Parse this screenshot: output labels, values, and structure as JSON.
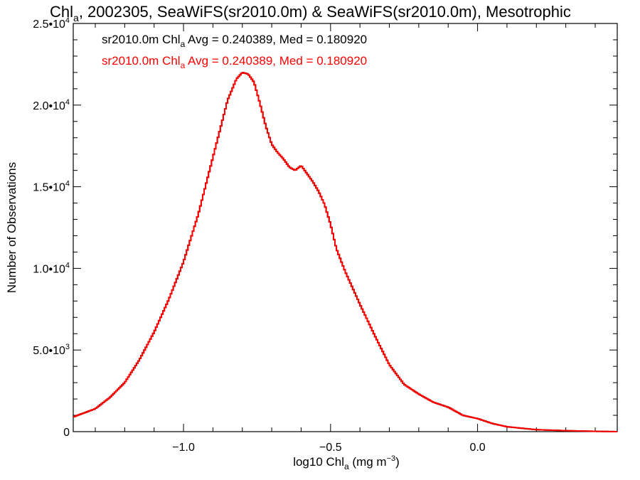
{
  "chart_data": {
    "type": "line",
    "title": {
      "prefix": "Chl",
      "subscript": "a",
      "rest": ", 2002305, SeaWiFS(sr2010.0m) & SeaWiFS(sr2010.0m), Mesotrophic"
    },
    "xlabel": {
      "prefix": "log10 Chl",
      "subscript": "a",
      "middle": " (mg m",
      "superscript": "−3",
      "suffix": ")"
    },
    "ylabel": "Number of Observations",
    "xlim": [
      -1.375,
      0.475
    ],
    "ylim": [
      0,
      25000
    ],
    "x_ticks": [
      {
        "value": -1.0,
        "label": "−1.0"
      },
      {
        "value": -0.5,
        "label": "−0.5"
      },
      {
        "value": 0.0,
        "label": "0.0"
      }
    ],
    "y_ticks": [
      {
        "value": 0,
        "label": "0",
        "exp": ""
      },
      {
        "value": 5000,
        "label": "5.0•10",
        "exp": "3"
      },
      {
        "value": 10000,
        "label": "1.0•10",
        "exp": "4"
      },
      {
        "value": 15000,
        "label": "1.5•10",
        "exp": "4"
      },
      {
        "value": 20000,
        "label": "2.0•10",
        "exp": "4"
      },
      {
        "value": 25000,
        "label": "2.5•10",
        "exp": "4"
      }
    ],
    "series": [
      {
        "name": "sr2010.0m Chl_a",
        "color": "#000000",
        "legend": {
          "prefix": "sr2010.0m Chl",
          "subscript": "a",
          "rest": " Avg = 0.240389, Med = 0.180920"
        },
        "x": [
          -1.375,
          -1.3,
          -1.25,
          -1.2,
          -1.15,
          -1.1,
          -1.05,
          -1.0,
          -0.95,
          -0.9,
          -0.85,
          -0.82,
          -0.8,
          -0.78,
          -0.76,
          -0.74,
          -0.72,
          -0.7,
          -0.68,
          -0.66,
          -0.64,
          -0.62,
          -0.6,
          -0.58,
          -0.56,
          -0.54,
          -0.52,
          -0.5,
          -0.48,
          -0.45,
          -0.4,
          -0.35,
          -0.3,
          -0.25,
          -0.2,
          -0.15,
          -0.1,
          -0.05,
          0.0,
          0.05,
          0.1,
          0.2,
          0.3,
          0.4,
          0.475
        ],
        "y": [
          900,
          1400,
          2100,
          3000,
          4400,
          6100,
          8100,
          10400,
          13300,
          16800,
          20300,
          21600,
          22000,
          21900,
          21400,
          20100,
          18700,
          17600,
          17100,
          16700,
          16200,
          16000,
          16300,
          15800,
          15300,
          14700,
          13900,
          12700,
          11200,
          9800,
          7800,
          5900,
          4100,
          2900,
          2300,
          1800,
          1500,
          1000,
          800,
          500,
          300,
          120,
          60,
          20,
          0
        ]
      },
      {
        "name": "sr2010.0m Chl_a",
        "color": "#ff0000",
        "legend": {
          "prefix": "sr2010.0m Chl",
          "subscript": "a",
          "rest": " Avg = 0.240389, Med = 0.180920"
        },
        "x": [
          -1.375,
          -1.3,
          -1.25,
          -1.2,
          -1.15,
          -1.1,
          -1.05,
          -1.0,
          -0.95,
          -0.9,
          -0.85,
          -0.82,
          -0.8,
          -0.78,
          -0.76,
          -0.74,
          -0.72,
          -0.7,
          -0.68,
          -0.66,
          -0.64,
          -0.62,
          -0.6,
          -0.58,
          -0.56,
          -0.54,
          -0.52,
          -0.5,
          -0.48,
          -0.45,
          -0.4,
          -0.35,
          -0.3,
          -0.25,
          -0.2,
          -0.15,
          -0.1,
          -0.05,
          0.0,
          0.05,
          0.1,
          0.2,
          0.3,
          0.4,
          0.475
        ],
        "y": [
          900,
          1400,
          2100,
          3000,
          4400,
          6100,
          8100,
          10400,
          13300,
          16800,
          20300,
          21600,
          22000,
          21900,
          21400,
          20100,
          18700,
          17600,
          17100,
          16700,
          16200,
          16000,
          16300,
          15800,
          15300,
          14700,
          13900,
          12700,
          11200,
          9800,
          7800,
          5900,
          4100,
          2900,
          2300,
          1800,
          1500,
          1000,
          800,
          500,
          300,
          120,
          60,
          20,
          0
        ]
      }
    ],
    "grid": false
  }
}
